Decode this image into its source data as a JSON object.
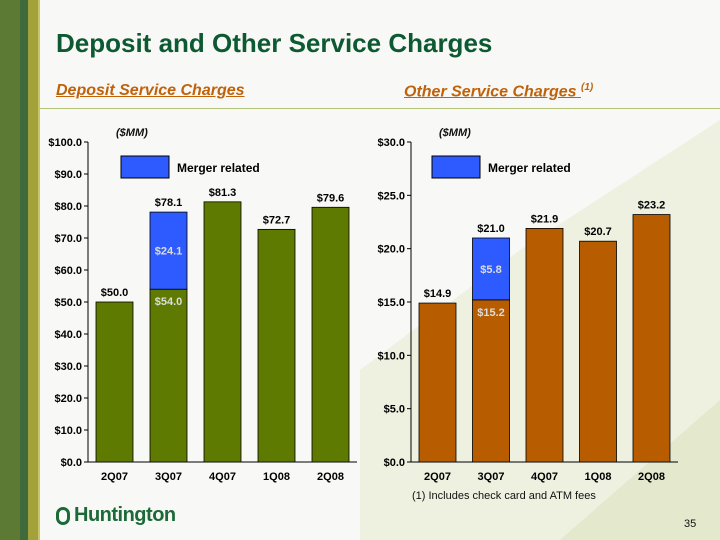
{
  "title": "Deposit and Other Service Charges",
  "footnote": "(1) Includes check card and ATM fees",
  "page_number": "35",
  "logo_text": "Huntington",
  "colors": {
    "green": "#5f7a00",
    "orange": "#b85c00",
    "blue": "#2e5bff"
  },
  "chart_data": [
    {
      "type": "bar",
      "title": "Deposit Service Charges",
      "title_sup": "",
      "unit_label": "($MM)",
      "legend": "Merger related",
      "categories": [
        "2Q07",
        "3Q07",
        "4Q07",
        "1Q08",
        "2Q08"
      ],
      "series": [
        {
          "name": "Base",
          "values": [
            50.0,
            54.0,
            81.3,
            72.7,
            79.6
          ]
        },
        {
          "name": "Merger related",
          "values": [
            0,
            24.1,
            0,
            0,
            0
          ]
        }
      ],
      "totals": [
        "$50.0",
        "$78.1",
        "$81.3",
        "$72.7",
        "$79.6"
      ],
      "inner_labels": [
        "",
        "$54.0",
        "",
        "",
        ""
      ],
      "merger_labels": [
        "",
        "$24.1",
        "",
        "",
        ""
      ],
      "yticks": [
        "$0.0",
        "$10.0",
        "$20.0",
        "$30.0",
        "$40.0",
        "$50.0",
        "$60.0",
        "$70.0",
        "$80.0",
        "$90.0",
        "$100.0"
      ],
      "ylim": [
        0,
        100
      ]
    },
    {
      "type": "bar",
      "title": "Other Service Charges",
      "title_sup": "(1)",
      "unit_label": "($MM)",
      "legend": "Merger related",
      "categories": [
        "2Q07",
        "3Q07",
        "4Q07",
        "1Q08",
        "2Q08"
      ],
      "series": [
        {
          "name": "Base",
          "values": [
            14.9,
            15.2,
            21.9,
            20.7,
            23.2
          ]
        },
        {
          "name": "Merger related",
          "values": [
            0,
            5.8,
            0,
            0,
            0
          ]
        }
      ],
      "totals": [
        "$14.9",
        "$21.0",
        "$21.9",
        "$20.7",
        "$23.2"
      ],
      "inner_labels": [
        "",
        "$15.2",
        "",
        "",
        ""
      ],
      "merger_labels": [
        "",
        "$5.8",
        "",
        "",
        ""
      ],
      "yticks": [
        "$0.0",
        "$5.0",
        "$10.0",
        "$15.0",
        "$20.0",
        "$25.0",
        "$30.0"
      ],
      "ylim": [
        0,
        30
      ]
    }
  ]
}
